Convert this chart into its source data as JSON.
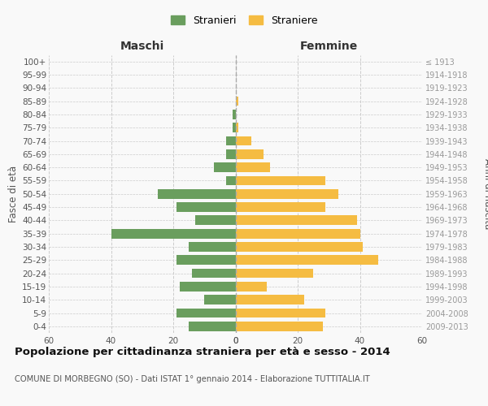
{
  "age_groups": [
    "0-4",
    "5-9",
    "10-14",
    "15-19",
    "20-24",
    "25-29",
    "30-34",
    "35-39",
    "40-44",
    "45-49",
    "50-54",
    "55-59",
    "60-64",
    "65-69",
    "70-74",
    "75-79",
    "80-84",
    "85-89",
    "90-94",
    "95-99",
    "100+"
  ],
  "birth_years": [
    "2009-2013",
    "2004-2008",
    "1999-2003",
    "1994-1998",
    "1989-1993",
    "1984-1988",
    "1979-1983",
    "1974-1978",
    "1969-1973",
    "1964-1968",
    "1959-1963",
    "1954-1958",
    "1949-1953",
    "1944-1948",
    "1939-1943",
    "1934-1938",
    "1929-1933",
    "1924-1928",
    "1919-1923",
    "1914-1918",
    "≤ 1913"
  ],
  "maschi": [
    15,
    19,
    10,
    18,
    14,
    19,
    15,
    40,
    13,
    19,
    25,
    3,
    7,
    3,
    3,
    1,
    1,
    0,
    0,
    0,
    0
  ],
  "femmine": [
    28,
    29,
    22,
    10,
    25,
    46,
    41,
    40,
    39,
    29,
    33,
    29,
    11,
    9,
    5,
    1,
    0,
    1,
    0,
    0,
    0
  ],
  "maschi_color": "#6a9e5e",
  "femmine_color": "#f5bc42",
  "background_color": "#f9f9f9",
  "grid_color": "#cccccc",
  "title": "Popolazione per cittadinanza straniera per età e sesso - 2014",
  "subtitle": "COMUNE DI MORBEGNO (SO) - Dati ISTAT 1° gennaio 2014 - Elaborazione TUTTITALIA.IT",
  "ylabel_left": "Fasce di età",
  "ylabel_right": "Anni di nascita",
  "xlabel_left": "Maschi",
  "xlabel_right": "Femmine",
  "legend_maschi": "Stranieri",
  "legend_femmine": "Straniere",
  "xlim": 60
}
